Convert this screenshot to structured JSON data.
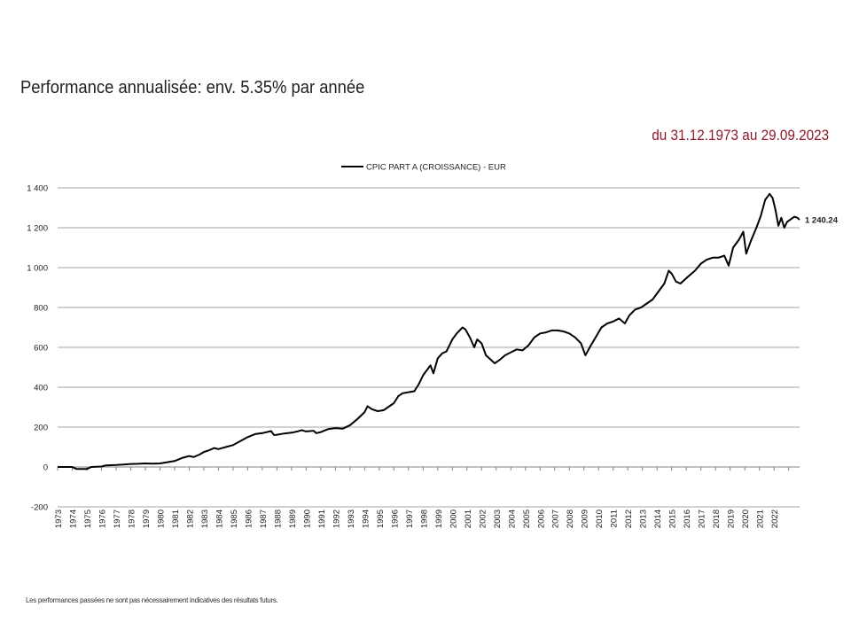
{
  "header": {
    "title": "Performance annualisée: env. 5.35% par année",
    "period": "du 31.12.1973 au 29.09.2023",
    "period_color": "#8b1a2b"
  },
  "footer": {
    "disclaimer": "Les performances passées ne sont pas nécessairement indicatives des résultats futurs."
  },
  "chart_data": {
    "type": "line",
    "title": "",
    "xlabel": "",
    "ylabel": "",
    "legend": "top-center",
    "grid": true,
    "ylim": [
      -200,
      1400
    ],
    "xlim": [
      1973.0,
      2023.75
    ],
    "y_ticks": [
      -200,
      0,
      200,
      400,
      600,
      800,
      1000,
      1200,
      1400
    ],
    "y_tick_labels": [
      "-200",
      "0",
      "200",
      "400",
      "600",
      "800",
      "1 000",
      "1 200",
      "1 400"
    ],
    "x_tick_labels": [
      "1973",
      "1974",
      "1975",
      "1976",
      "1977",
      "1978",
      "1979",
      "1980",
      "1981",
      "1982",
      "1983",
      "1984",
      "1985",
      "1986",
      "1987",
      "1988",
      "1989",
      "1990",
      "1991",
      "1992",
      "1993",
      "1994",
      "1995",
      "1996",
      "1997",
      "1998",
      "1999",
      "2000",
      "2001",
      "2002",
      "2003",
      "2004",
      "2005",
      "2006",
      "2007",
      "2008",
      "2009",
      "2010",
      "2011",
      "2012",
      "2013",
      "2014",
      "2015",
      "2016",
      "2017",
      "2018",
      "2019",
      "2020",
      "2021",
      "2022"
    ],
    "series": [
      {
        "name": "CPIC PART A (CROISSANCE) - EUR",
        "color": "#000000",
        "end_label": "1 240.24",
        "points": [
          [
            1973.0,
            0
          ],
          [
            1974.0,
            0
          ],
          [
            1974.3,
            -10
          ],
          [
            1975.0,
            -10
          ],
          [
            1975.3,
            0
          ],
          [
            1976.0,
            2
          ],
          [
            1976.3,
            8
          ],
          [
            1977.0,
            10
          ],
          [
            1977.5,
            12
          ],
          [
            1978.0,
            15
          ],
          [
            1978.5,
            16
          ],
          [
            1979.0,
            18
          ],
          [
            1979.5,
            17
          ],
          [
            1980.0,
            18
          ],
          [
            1980.5,
            24
          ],
          [
            1981.0,
            30
          ],
          [
            1981.5,
            45
          ],
          [
            1982.0,
            55
          ],
          [
            1982.3,
            50
          ],
          [
            1982.7,
            62
          ],
          [
            1983.0,
            75
          ],
          [
            1983.4,
            85
          ],
          [
            1983.7,
            95
          ],
          [
            1984.0,
            90
          ],
          [
            1984.5,
            100
          ],
          [
            1985.0,
            110
          ],
          [
            1985.5,
            130
          ],
          [
            1986.0,
            150
          ],
          [
            1986.5,
            165
          ],
          [
            1987.0,
            170
          ],
          [
            1987.6,
            180
          ],
          [
            1987.8,
            160
          ],
          [
            1988.0,
            162
          ],
          [
            1988.5,
            168
          ],
          [
            1989.0,
            172
          ],
          [
            1989.4,
            178
          ],
          [
            1989.7,
            185
          ],
          [
            1990.0,
            178
          ],
          [
            1990.5,
            182
          ],
          [
            1990.7,
            170
          ],
          [
            1991.0,
            175
          ],
          [
            1991.5,
            190
          ],
          [
            1992.0,
            195
          ],
          [
            1992.5,
            192
          ],
          [
            1993.0,
            210
          ],
          [
            1993.5,
            240
          ],
          [
            1994.0,
            275
          ],
          [
            1994.2,
            305
          ],
          [
            1994.5,
            290
          ],
          [
            1994.9,
            280
          ],
          [
            1995.3,
            285
          ],
          [
            1995.6,
            300
          ],
          [
            1996.0,
            320
          ],
          [
            1996.3,
            355
          ],
          [
            1996.6,
            370
          ],
          [
            1997.0,
            375
          ],
          [
            1997.4,
            380
          ],
          [
            1997.7,
            415
          ],
          [
            1998.0,
            460
          ],
          [
            1998.2,
            480
          ],
          [
            1998.5,
            510
          ],
          [
            1998.7,
            470
          ],
          [
            1999.0,
            545
          ],
          [
            1999.3,
            570
          ],
          [
            1999.6,
            580
          ],
          [
            2000.0,
            640
          ],
          [
            2000.3,
            670
          ],
          [
            2000.7,
            700
          ],
          [
            2000.9,
            690
          ],
          [
            2001.2,
            650
          ],
          [
            2001.5,
            600
          ],
          [
            2001.7,
            640
          ],
          [
            2002.0,
            620
          ],
          [
            2002.3,
            560
          ],
          [
            2002.6,
            540
          ],
          [
            2002.9,
            520
          ],
          [
            2003.2,
            535
          ],
          [
            2003.6,
            560
          ],
          [
            2004.0,
            575
          ],
          [
            2004.4,
            590
          ],
          [
            2004.8,
            585
          ],
          [
            2005.2,
            610
          ],
          [
            2005.6,
            650
          ],
          [
            2006.0,
            670
          ],
          [
            2006.4,
            675
          ],
          [
            2006.8,
            685
          ],
          [
            2007.2,
            685
          ],
          [
            2007.6,
            680
          ],
          [
            2008.0,
            670
          ],
          [
            2008.4,
            650
          ],
          [
            2008.8,
            620
          ],
          [
            2009.1,
            560
          ],
          [
            2009.4,
            600
          ],
          [
            2009.8,
            650
          ],
          [
            2010.2,
            700
          ],
          [
            2010.6,
            720
          ],
          [
            2011.0,
            730
          ],
          [
            2011.4,
            745
          ],
          [
            2011.8,
            720
          ],
          [
            2012.1,
            760
          ],
          [
            2012.5,
            790
          ],
          [
            2012.9,
            800
          ],
          [
            2013.3,
            820
          ],
          [
            2013.7,
            840
          ],
          [
            2014.1,
            880
          ],
          [
            2014.5,
            920
          ],
          [
            2014.8,
            985
          ],
          [
            2015.0,
            970
          ],
          [
            2015.3,
            930
          ],
          [
            2015.6,
            920
          ],
          [
            2015.9,
            940
          ],
          [
            2016.2,
            960
          ],
          [
            2016.6,
            985
          ],
          [
            2017.0,
            1020
          ],
          [
            2017.4,
            1040
          ],
          [
            2017.8,
            1050
          ],
          [
            2018.2,
            1050
          ],
          [
            2018.6,
            1060
          ],
          [
            2018.9,
            1010
          ],
          [
            2019.2,
            1100
          ],
          [
            2019.6,
            1140
          ],
          [
            2019.9,
            1180
          ],
          [
            2020.1,
            1070
          ],
          [
            2020.4,
            1130
          ],
          [
            2020.8,
            1200
          ],
          [
            2021.1,
            1260
          ],
          [
            2021.4,
            1340
          ],
          [
            2021.7,
            1370
          ],
          [
            2021.9,
            1350
          ],
          [
            2022.1,
            1290
          ],
          [
            2022.3,
            1210
          ],
          [
            2022.5,
            1250
          ],
          [
            2022.7,
            1200
          ],
          [
            2022.9,
            1230
          ],
          [
            2023.1,
            1240
          ],
          [
            2023.4,
            1255
          ],
          [
            2023.6,
            1250
          ],
          [
            2023.75,
            1240
          ]
        ]
      }
    ]
  }
}
